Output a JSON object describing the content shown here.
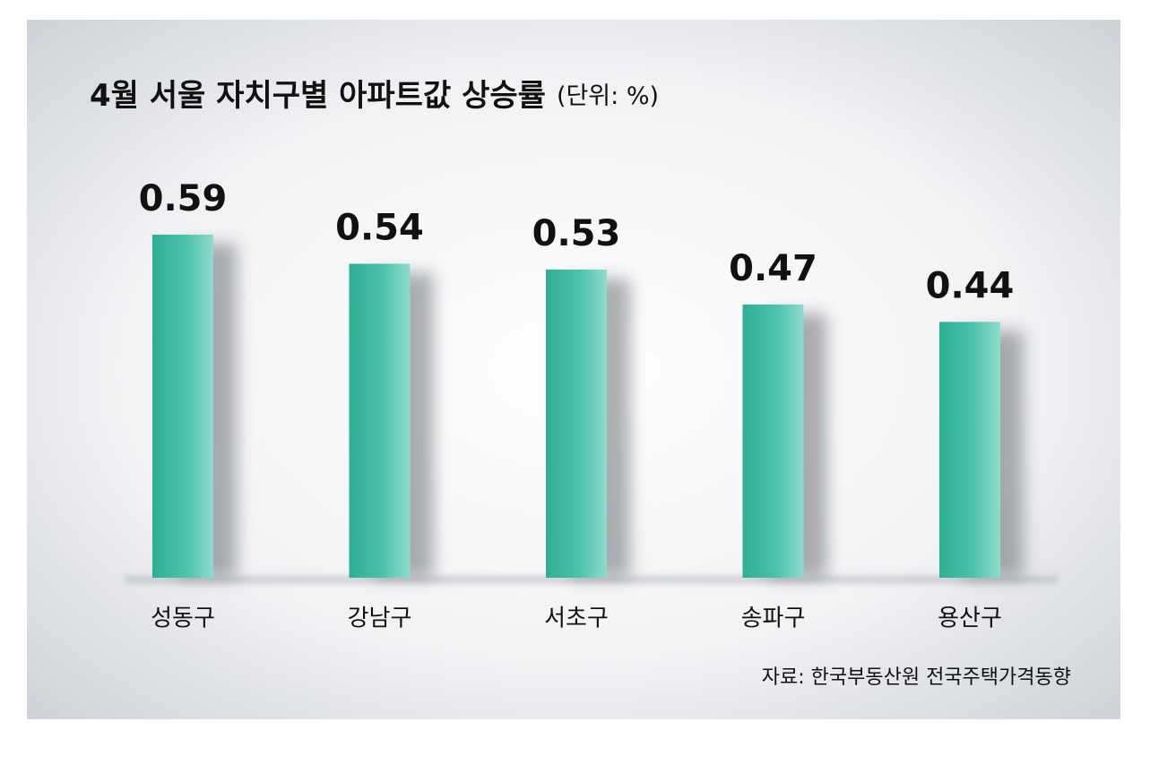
{
  "chart_data": {
    "type": "bar",
    "title": "4월 서울 자치구별 아파트값 상승률",
    "subtitle": "(단위: %)",
    "source": "자료: 한국부동산원 전국주택가격동향",
    "categories": [
      "성동구",
      "강남구",
      "서초구",
      "송파구",
      "용산구"
    ],
    "values": [
      0.59,
      0.54,
      0.53,
      0.47,
      0.44
    ],
    "color": "#3dbba3"
  }
}
